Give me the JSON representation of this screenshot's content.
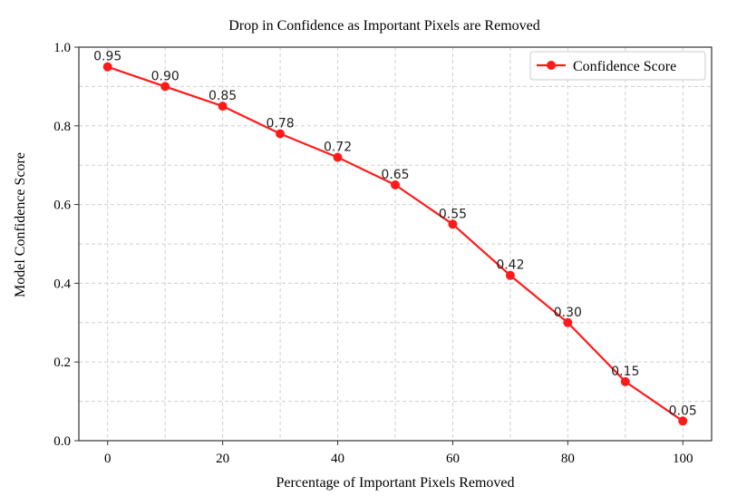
{
  "chart_data": {
    "type": "line",
    "title": "Drop in Confidence as Important Pixels are Removed",
    "xlabel": "Percentage of Important Pixels Removed",
    "ylabel": "Model Confidence Score",
    "x": [
      0,
      10,
      20,
      30,
      40,
      50,
      60,
      70,
      80,
      90,
      100
    ],
    "series": [
      {
        "name": "Confidence Score",
        "color": "#ff1a1a",
        "values": [
          0.95,
          0.9,
          0.85,
          0.78,
          0.72,
          0.65,
          0.55,
          0.42,
          0.3,
          0.15,
          0.05
        ],
        "labels": [
          "0.95",
          "0.90",
          "0.85",
          "0.78",
          "0.72",
          "0.65",
          "0.55",
          "0.42",
          "0.30",
          "0.15",
          "0.05"
        ]
      }
    ],
    "xlim": [
      -5,
      105
    ],
    "ylim": [
      0,
      1.0
    ],
    "xticks": [
      0,
      20,
      40,
      60,
      80,
      100
    ],
    "xtick_labels": [
      "0",
      "20",
      "40",
      "60",
      "80",
      "100"
    ],
    "yticks": [
      0,
      0.2,
      0.4,
      0.6,
      0.8,
      1.0
    ],
    "ytick_labels": [
      "0.0",
      "0.2",
      "0.4",
      "0.6",
      "0.8",
      "1.0"
    ],
    "grid": true,
    "gridlines_x": [
      0,
      10,
      20,
      30,
      40,
      50,
      60,
      70,
      80,
      90,
      100
    ],
    "gridlines_y": [
      0.1,
      0.2,
      0.3,
      0.4,
      0.5,
      0.6,
      0.7,
      0.8,
      0.9
    ],
    "legend_position": "top-right"
  }
}
